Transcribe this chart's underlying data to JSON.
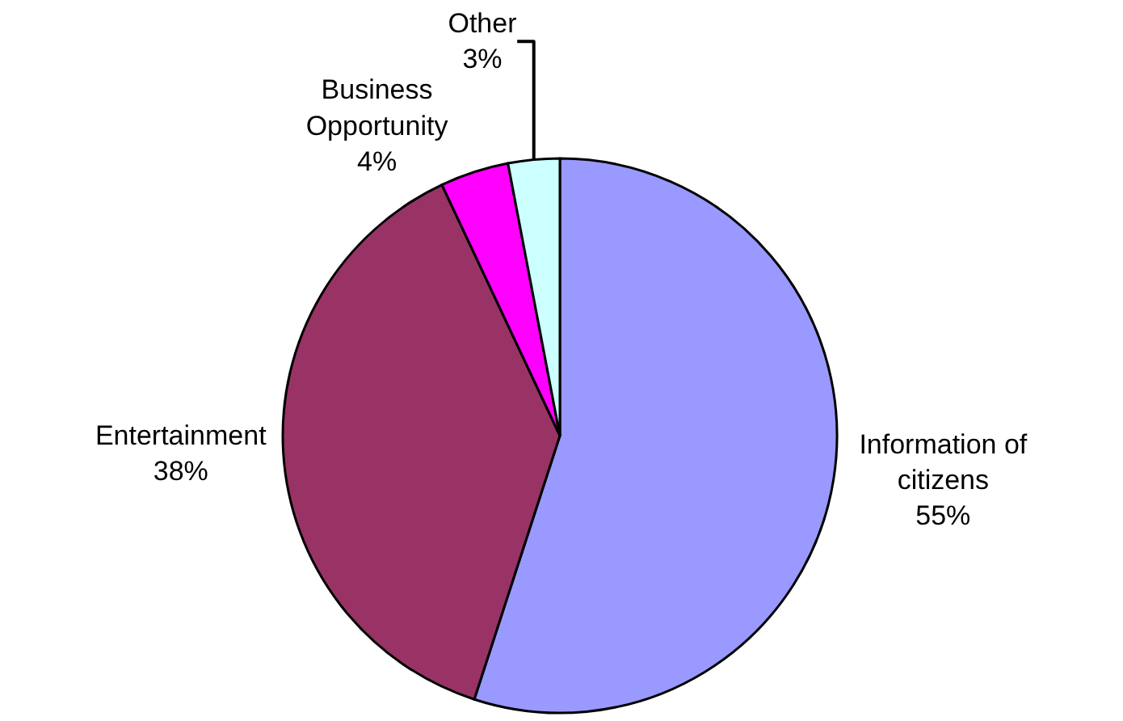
{
  "chart_data": {
    "type": "pie",
    "categories": [
      "Information of\ncitizens",
      "Entertainment",
      "Business\nOpportunity",
      "Other"
    ],
    "values": [
      55,
      38,
      4,
      3
    ],
    "value_labels": [
      "55%",
      "38%",
      "4%",
      "3%"
    ],
    "colors": [
      "#9999ff",
      "#993366",
      "#ff00ff",
      "#ccffff"
    ],
    "legend": false
  }
}
